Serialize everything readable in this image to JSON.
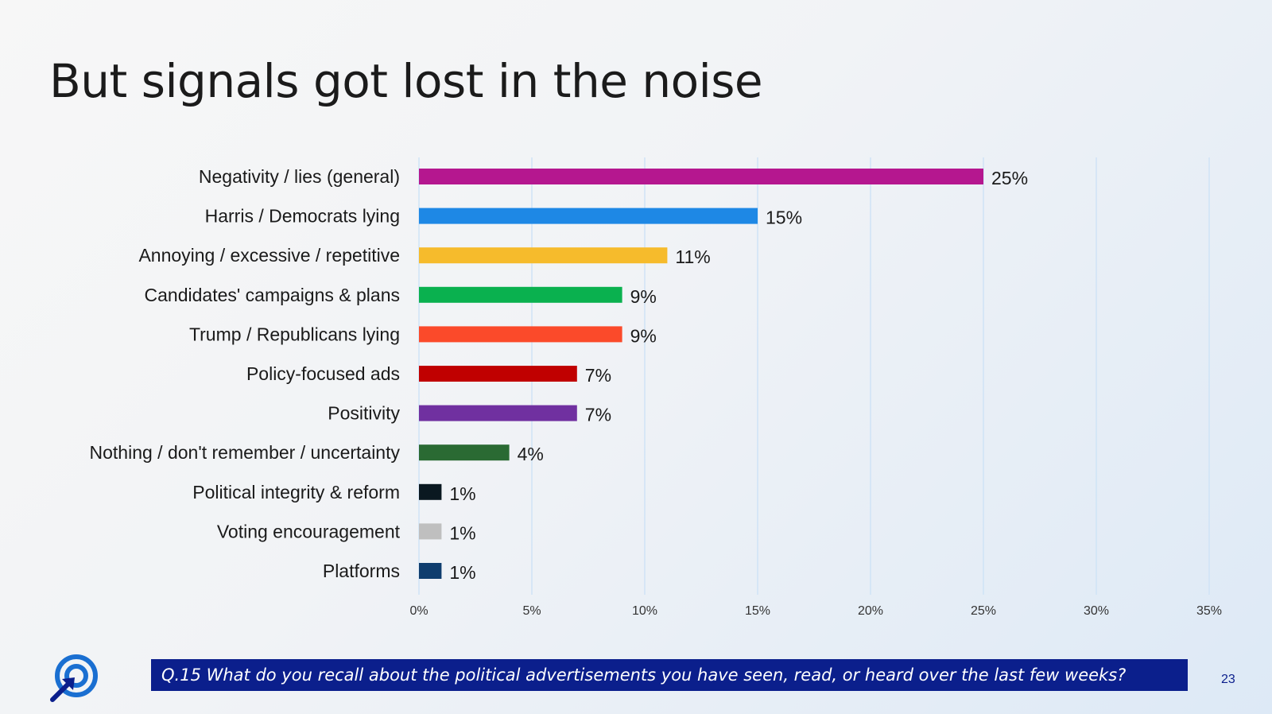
{
  "slide": {
    "title": "But signals got lost in the noise",
    "question": "Q.15 What do you recall about the political advertisements you have seen, read, or heard over the last few weeks?",
    "page_number": "23"
  },
  "colors": {
    "footer_bg": "#0b1f8c",
    "gridline": "#cfe3f5",
    "logo": "#1a6fd1"
  },
  "icons": {
    "logo": "target-arrow-logo-icon"
  },
  "chart_data": {
    "type": "bar",
    "orientation": "horizontal",
    "title": "",
    "xlabel": "",
    "ylabel": "",
    "xlim": [
      0,
      35
    ],
    "grid": true,
    "legend": "none",
    "ticks": [
      "0%",
      "5%",
      "10%",
      "15%",
      "20%",
      "25%",
      "30%",
      "35%"
    ],
    "categories": [
      "Negativity / lies (general)",
      "Harris / Democrats lying",
      "Annoying / excessive / repetitive",
      "Candidates' campaigns & plans",
      "Trump / Republicans lying",
      "Policy-focused ads",
      "Positivity",
      "Nothing / don't remember / uncertainty",
      "Political integrity & reform",
      "Voting encouragement",
      "Platforms"
    ],
    "values": [
      25,
      15,
      11,
      9,
      9,
      7,
      7,
      4,
      1,
      1,
      1
    ],
    "labels": [
      "25%",
      "15%",
      "11%",
      "9%",
      "9%",
      "7%",
      "7%",
      "4%",
      "1%",
      "1%",
      "1%"
    ],
    "colors": [
      "#b5178f",
      "#1e88e5",
      "#f6bb2c",
      "#0ab14f",
      "#fb4a2a",
      "#c00000",
      "#7030a0",
      "#2a6a33",
      "#0a1820",
      "#bfbfbf",
      "#0f3d6e"
    ]
  }
}
